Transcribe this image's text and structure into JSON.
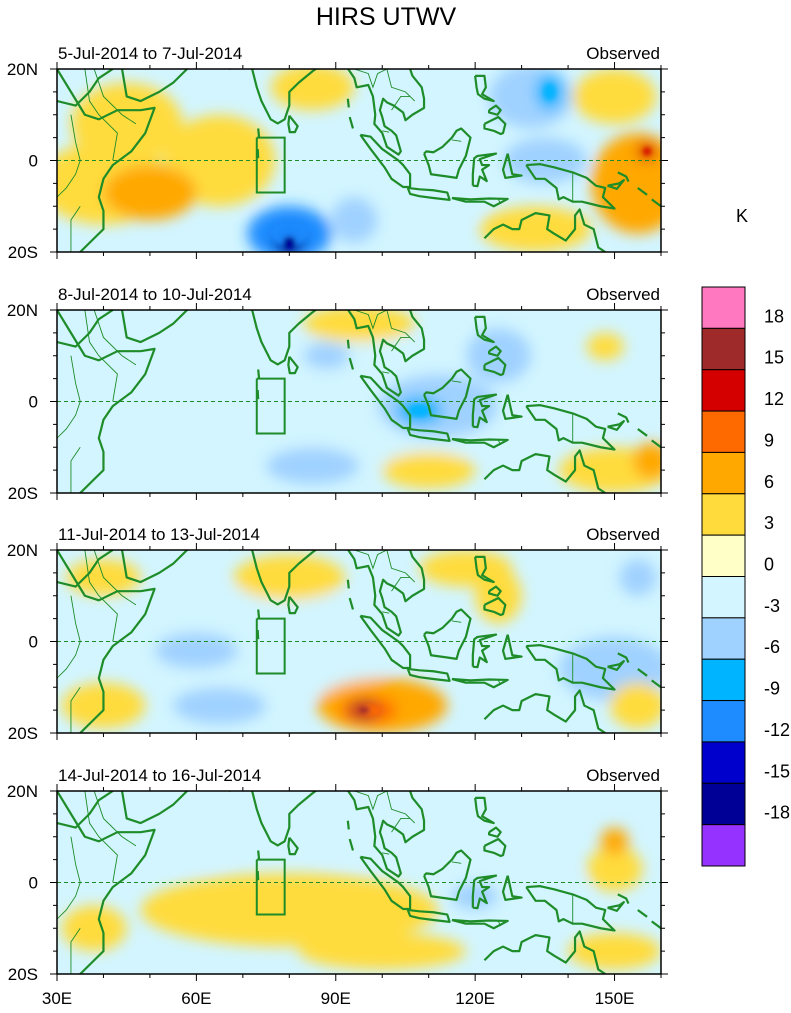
{
  "chart_data": {
    "type": "heatmap",
    "title": "HIRS UTWV",
    "units_label": "K",
    "x_ticks": [
      "30E",
      "60E",
      "90E",
      "120E",
      "150E"
    ],
    "x_tick_lons": [
      30,
      60,
      90,
      120,
      150
    ],
    "x_range": [
      30,
      160
    ],
    "y_ticks": [
      "20N",
      "0",
      "20S"
    ],
    "y_tick_lats": [
      20,
      0,
      -20
    ],
    "y_range": [
      -20,
      20
    ],
    "colorbar": {
      "levels": [
        "18",
        "15",
        "12",
        "9",
        "6",
        "3",
        "0",
        "-3",
        "-6",
        "-9",
        "-12",
        "-15",
        "-18"
      ],
      "colors": [
        "#ff78c0",
        "#9e2a2a",
        "#d40000",
        "#ff6a00",
        "#ffa800",
        "#ffdc3c",
        "#ffffc8",
        "#d2f5ff",
        "#a0d2ff",
        "#00b4ff",
        "#1e8cff",
        "#0000cd",
        "#000096",
        "#9632ff"
      ]
    },
    "panels": [
      {
        "left_label": "5-Jul-2014 to 7-Jul-2014",
        "right_label": "Observed",
        "blobs": [
          {
            "lon": 40,
            "lat": -5,
            "rx": 14,
            "ry": 9,
            "v": 5
          },
          {
            "lon": 50,
            "lat": -7,
            "rx": 10,
            "ry": 6,
            "v": 8
          },
          {
            "lon": 45,
            "lat": 8,
            "rx": 12,
            "ry": 9,
            "v": 4
          },
          {
            "lon": 65,
            "lat": 0,
            "rx": 12,
            "ry": 10,
            "v": 3
          },
          {
            "lon": 80,
            "lat": -16,
            "rx": 9,
            "ry": 6,
            "v": -10
          },
          {
            "lon": 80,
            "lat": -18,
            "rx": 3,
            "ry": 3,
            "v": -16
          },
          {
            "lon": 94,
            "lat": -13,
            "rx": 5,
            "ry": 5,
            "v": -6
          },
          {
            "lon": 110,
            "lat": 0,
            "rx": 16,
            "ry": 14,
            "v": -2
          },
          {
            "lon": 132,
            "lat": 14,
            "rx": 9,
            "ry": 7,
            "v": -6
          },
          {
            "lon": 136,
            "lat": 15,
            "rx": 3,
            "ry": 4,
            "v": -9
          },
          {
            "lon": 135,
            "lat": 0,
            "rx": 9,
            "ry": 5,
            "v": -5
          },
          {
            "lon": 150,
            "lat": 14,
            "rx": 9,
            "ry": 6,
            "v": 5
          },
          {
            "lon": 155,
            "lat": -5,
            "rx": 10,
            "ry": 11,
            "v": 8
          },
          {
            "lon": 157,
            "lat": 2,
            "rx": 2,
            "ry": 2,
            "v": 13
          },
          {
            "lon": 133,
            "lat": -15,
            "rx": 12,
            "ry": 5,
            "v": 5
          },
          {
            "lon": 85,
            "lat": 16,
            "rx": 9,
            "ry": 5,
            "v": 4
          }
        ]
      },
      {
        "left_label": "8-Jul-2014 to 10-Jul-2014",
        "right_label": "Observed",
        "blobs": [
          {
            "lon": 95,
            "lat": 0,
            "rx": 40,
            "ry": 14,
            "v": -2
          },
          {
            "lon": 112,
            "lat": -1,
            "rx": 13,
            "ry": 7,
            "v": -6
          },
          {
            "lon": 108,
            "lat": -2,
            "rx": 5,
            "ry": 3,
            "v": -9
          },
          {
            "lon": 125,
            "lat": 10,
            "rx": 7,
            "ry": 6,
            "v": -4
          },
          {
            "lon": 88,
            "lat": 10,
            "rx": 5,
            "ry": 3,
            "v": -5
          },
          {
            "lon": 85,
            "lat": -14,
            "rx": 10,
            "ry": 4,
            "v": -4
          },
          {
            "lon": 150,
            "lat": -15,
            "rx": 12,
            "ry": 5,
            "v": 5
          },
          {
            "lon": 158,
            "lat": -13,
            "rx": 4,
            "ry": 4,
            "v": 8
          },
          {
            "lon": 110,
            "lat": -15,
            "rx": 10,
            "ry": 4,
            "v": 3
          },
          {
            "lon": 95,
            "lat": 17,
            "rx": 12,
            "ry": 4,
            "v": 3
          },
          {
            "lon": 148,
            "lat": 12,
            "rx": 4,
            "ry": 3,
            "v": 4
          }
        ]
      },
      {
        "left_label": "11-Jul-2014 to 13-Jul-2014",
        "right_label": "Observed",
        "blobs": [
          {
            "lon": 75,
            "lat": 0,
            "rx": 30,
            "ry": 12,
            "v": -3
          },
          {
            "lon": 60,
            "lat": -2,
            "rx": 9,
            "ry": 4,
            "v": -5
          },
          {
            "lon": 65,
            "lat": -14,
            "rx": 10,
            "ry": 4,
            "v": -6
          },
          {
            "lon": 100,
            "lat": -14,
            "rx": 14,
            "ry": 6,
            "v": 6
          },
          {
            "lon": 97,
            "lat": -15,
            "rx": 6,
            "ry": 3,
            "v": 10
          },
          {
            "lon": 96,
            "lat": -15,
            "rx": 3,
            "ry": 2,
            "v": 15
          },
          {
            "lon": 40,
            "lat": -14,
            "rx": 9,
            "ry": 5,
            "v": 4
          },
          {
            "lon": 150,
            "lat": -6,
            "rx": 12,
            "ry": 7,
            "v": -4
          },
          {
            "lon": 155,
            "lat": -14,
            "rx": 6,
            "ry": 5,
            "v": 5
          },
          {
            "lon": 125,
            "lat": 10,
            "rx": 5,
            "ry": 6,
            "v": 4
          },
          {
            "lon": 118,
            "lat": 16,
            "rx": 10,
            "ry": 4,
            "v": 3
          },
          {
            "lon": 155,
            "lat": 14,
            "rx": 4,
            "ry": 4,
            "v": -5
          },
          {
            "lon": 80,
            "lat": 14,
            "rx": 12,
            "ry": 5,
            "v": 3
          },
          {
            "lon": 40,
            "lat": 14,
            "rx": 8,
            "ry": 4,
            "v": 3
          }
        ]
      },
      {
        "left_label": "14-Jul-2014 to 16-Jul-2014",
        "right_label": "Observed",
        "blobs": [
          {
            "lon": 80,
            "lat": -6,
            "rx": 32,
            "ry": 8,
            "v": 4
          },
          {
            "lon": 100,
            "lat": -15,
            "rx": 18,
            "ry": 4,
            "v": 5
          },
          {
            "lon": 130,
            "lat": -2,
            "rx": 14,
            "ry": 8,
            "v": -3
          },
          {
            "lon": 120,
            "lat": -3,
            "rx": 5,
            "ry": 3,
            "v": -5
          },
          {
            "lon": 95,
            "lat": 12,
            "rx": 14,
            "ry": 7,
            "v": -2
          },
          {
            "lon": 150,
            "lat": -15,
            "rx": 10,
            "ry": 4,
            "v": 3
          },
          {
            "lon": 150,
            "lat": 3,
            "rx": 6,
            "ry": 5,
            "v": 4
          },
          {
            "lon": 150,
            "lat": 9,
            "rx": 3,
            "ry": 3,
            "v": 7
          },
          {
            "lon": 60,
            "lat": 10,
            "rx": 10,
            "ry": 6,
            "v": -2
          },
          {
            "lon": 38,
            "lat": -10,
            "rx": 7,
            "ry": 5,
            "v": 3
          }
        ]
      }
    ]
  }
}
